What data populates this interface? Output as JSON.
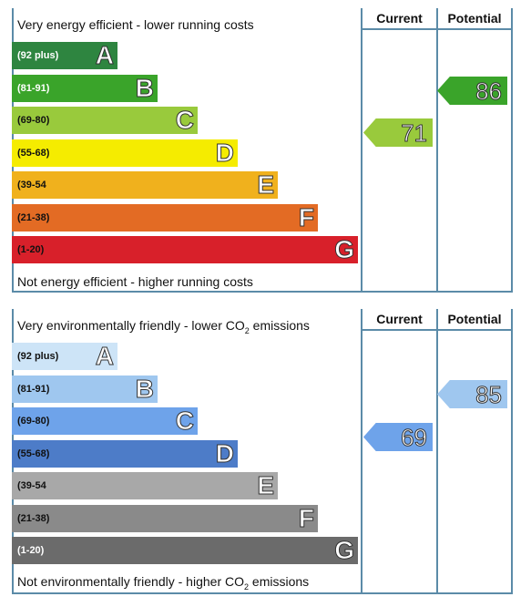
{
  "energy": {
    "top_caption": "Very energy efficient - lower running costs",
    "bottom_caption": "Not energy efficient - higher running costs",
    "col_current": "Current",
    "col_potential": "Potential",
    "bands": [
      {
        "range": "(92 plus)",
        "letter": "A",
        "color": "#2e8540",
        "text_color": "#ffffff"
      },
      {
        "range": "(81-91)",
        "letter": "B",
        "color": "#3aa42a",
        "text_color": "#ffffff"
      },
      {
        "range": "(69-80)",
        "letter": "C",
        "color": "#99ca3c",
        "text_color": "#111111"
      },
      {
        "range": "(55-68)",
        "letter": "D",
        "color": "#f5ec00",
        "text_color": "#111111"
      },
      {
        "range": "(39-54",
        "letter": "E",
        "color": "#f0b11d",
        "text_color": "#111111"
      },
      {
        "range": "(21-38)",
        "letter": "F",
        "color": "#e36b24",
        "text_color": "#111111"
      },
      {
        "range": "(1-20)",
        "letter": "G",
        "color": "#d8202a",
        "text_color": "#111111"
      }
    ],
    "current": {
      "value": "71",
      "band": "C",
      "color": "#99ca3c"
    },
    "potential": {
      "value": "86",
      "band": "B",
      "color": "#3aa42a"
    }
  },
  "environment": {
    "top_caption_pre": "Very environmentally friendly - lower CO",
    "top_caption_sub": "2",
    "top_caption_post": " emissions",
    "bottom_caption_pre": "Not environmentally friendly - higher CO",
    "bottom_caption_sub": "2",
    "bottom_caption_post": " emissions",
    "col_current": "Current",
    "col_potential": "Potential",
    "bands": [
      {
        "range": "(92 plus)",
        "letter": "A",
        "color": "#cde4f7",
        "text_color": "#111111"
      },
      {
        "range": "(81-91)",
        "letter": "B",
        "color": "#9fc7ef",
        "text_color": "#111111"
      },
      {
        "range": "(69-80)",
        "letter": "C",
        "color": "#6ea3ea",
        "text_color": "#111111"
      },
      {
        "range": "(55-68)",
        "letter": "D",
        "color": "#4d7cc8",
        "text_color": "#111111"
      },
      {
        "range": "(39-54",
        "letter": "E",
        "color": "#a8a8a8",
        "text_color": "#111111"
      },
      {
        "range": "(21-38)",
        "letter": "F",
        "color": "#8a8a8a",
        "text_color": "#111111"
      },
      {
        "range": "(1-20)",
        "letter": "G",
        "color": "#6b6b6b",
        "text_color": "#ffffff"
      }
    ],
    "current": {
      "value": "69",
      "band": "C",
      "color": "#6ea3ea"
    },
    "potential": {
      "value": "85",
      "band": "B",
      "color": "#9fc7ef"
    }
  }
}
